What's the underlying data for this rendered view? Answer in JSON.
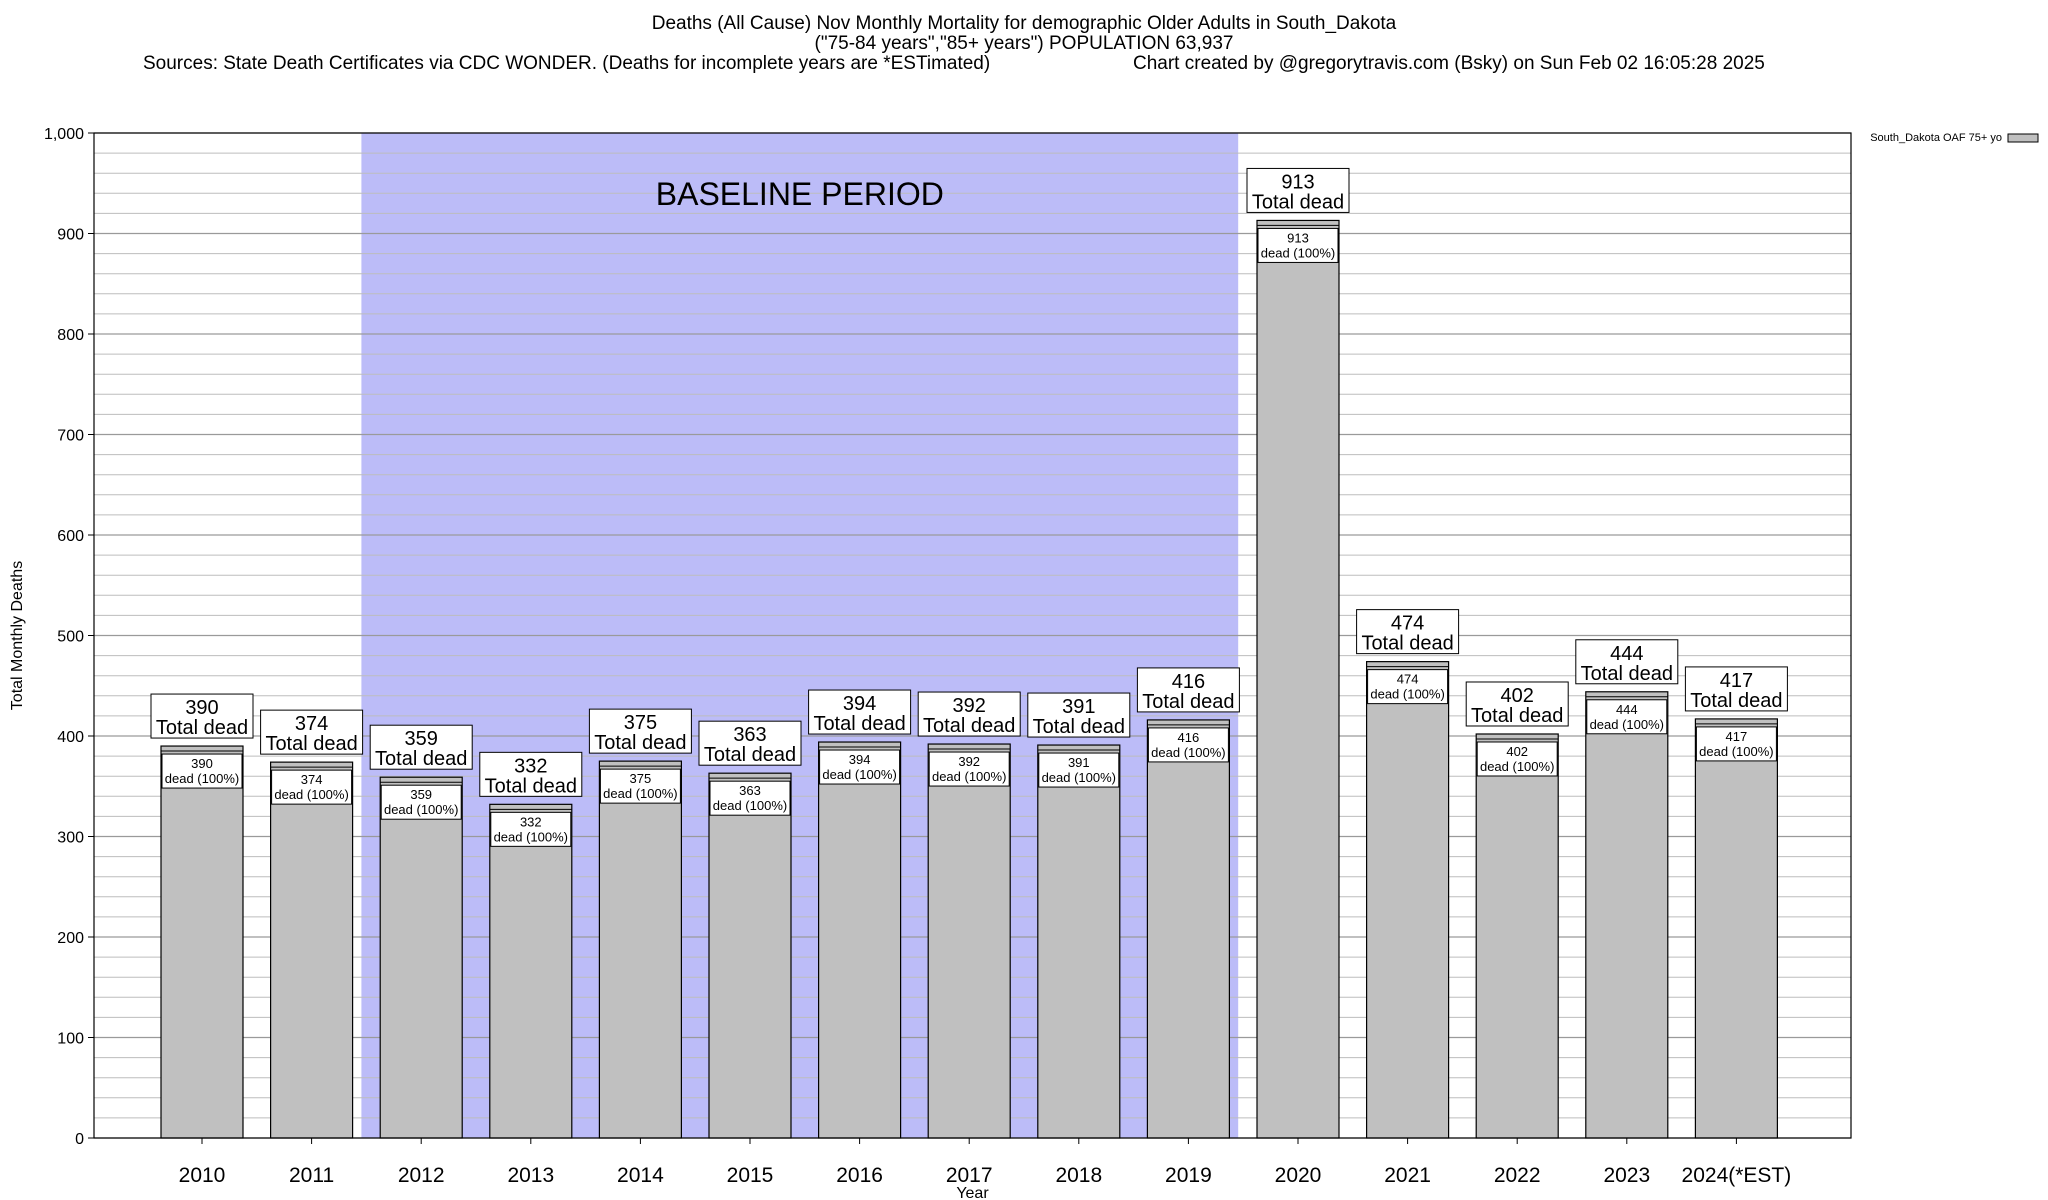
{
  "header": {
    "title": "Deaths (All Cause) Nov Monthly Mortality for demographic Older Adults in South_Dakota",
    "subtitle": "(\"75-84 years\",\"85+ years\") POPULATION 63,937",
    "sources": "Sources: State Death Certificates via CDC WONDER. (Deaths for incomplete years are *ESTimated)",
    "credit": "Chart created by @gregorytravis.com (Bsky) on Sun Feb 02 16:05:28 2025"
  },
  "chart_data": {
    "type": "bar",
    "title": "Deaths (All Cause) Nov Monthly Mortality for demographic Older Adults in South_Dakota",
    "xlabel": "Year",
    "ylabel": "Total Monthly Deaths",
    "ylim": [
      0,
      1000
    ],
    "yticks": [
      0,
      100,
      200,
      300,
      400,
      500,
      600,
      700,
      800,
      900,
      1000
    ],
    "ytick_labels": [
      "0",
      "100",
      "200",
      "300",
      "400",
      "500",
      "600",
      "700",
      "800",
      "900",
      "1,000"
    ],
    "minor_grid_step": 20,
    "grid": true,
    "legend_position": "top-right",
    "categories": [
      "2010",
      "2011",
      "2012",
      "2013",
      "2014",
      "2015",
      "2016",
      "2017",
      "2018",
      "2019",
      "2020",
      "2021",
      "2022",
      "2023",
      "2024(*EST)"
    ],
    "series": [
      {
        "name": "South_Dakota OAF 75+ yo",
        "values": [
          390,
          374,
          359,
          332,
          375,
          363,
          394,
          392,
          391,
          416,
          913,
          474,
          402,
          444,
          417
        ],
        "color": "#c0c0c0"
      }
    ],
    "total_label_suffix": "Total dead",
    "inner_label_suffix": "dead (100%)",
    "baseline_region": {
      "label": "BASELINE PERIOD",
      "start_category": "2012",
      "end_category": "2019",
      "color": "#bcbcf8"
    }
  }
}
